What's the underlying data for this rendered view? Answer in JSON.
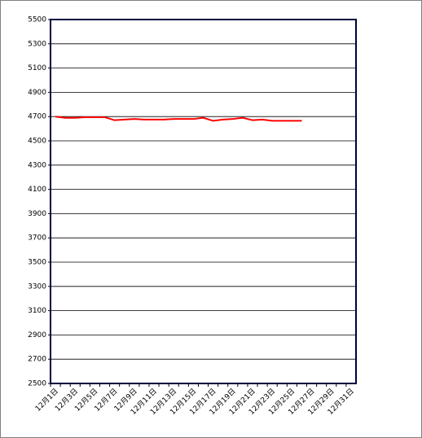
{
  "chart_data": {
    "type": "line",
    "categories": [
      "12月1日",
      null,
      "12月3日",
      null,
      "12月5日",
      null,
      "12月7日",
      null,
      "12月9日",
      null,
      "12月11日",
      null,
      "12月13日",
      null,
      "12月15日",
      null,
      "12月17日",
      null,
      "12月19日",
      null,
      "12月21日",
      null,
      "12月23日",
      null,
      "12月25日",
      null,
      "12月27日",
      null,
      "12月29日",
      null,
      "12月31日"
    ],
    "series": [
      {
        "color": "#ff0000",
        "values": [
          4700,
          4690,
          4690,
          4695,
          4695,
          4695,
          4670,
          4675,
          4680,
          4675,
          4675,
          4675,
          4680,
          4680,
          4680,
          4690,
          4665,
          4675,
          4680,
          4690,
          4670,
          4675,
          4665,
          4665,
          4665,
          4665,
          null,
          null,
          null,
          null,
          null
        ]
      }
    ],
    "ylim": [
      2500,
      5500
    ],
    "yticks": [
      2500,
      2700,
      2900,
      3100,
      3300,
      3500,
      3700,
      3900,
      4100,
      4300,
      4500,
      4700,
      4900,
      5100,
      5300,
      5500
    ],
    "grid": true
  }
}
